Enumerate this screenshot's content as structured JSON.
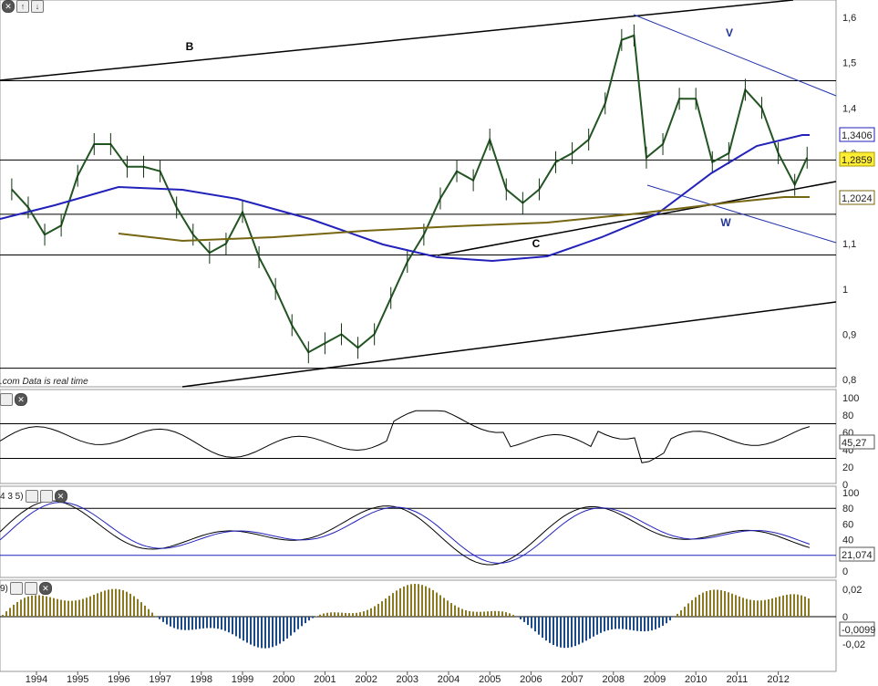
{
  "toolbar": {
    "close": "✕",
    "up": "↑",
    "down": "↓"
  },
  "source_note": ".com  Data is real time",
  "panels": {
    "stoch_title": "4 3 5)",
    "macd_title": "9)"
  },
  "chart_data": [
    {
      "type": "line",
      "name": "price",
      "title": "",
      "x_ticks": [
        "1994",
        "1995",
        "1996",
        "1997",
        "1998",
        "1999",
        "2000",
        "2001",
        "2002",
        "2003",
        "2004",
        "2005",
        "2006",
        "2007",
        "2008",
        "2009",
        "2010",
        "2011",
        "2012"
      ],
      "ylim": [
        0.8,
        1.62
      ],
      "y_ticks": [
        "1,6",
        "1,5",
        "1,4",
        "1,3",
        "1,2",
        "1,1",
        "1",
        "0,9",
        "0,8"
      ],
      "value_labels": {
        "ma_short": "1,3406",
        "last": "1,2859",
        "ma_long": "1,2024"
      },
      "annotations": [
        "B",
        "V",
        "W",
        "C"
      ],
      "x": [
        1993.4,
        1993.8,
        1994.2,
        1994.6,
        1995.0,
        1995.4,
        1995.8,
        1996.2,
        1996.6,
        1997.0,
        1997.4,
        1997.8,
        1998.2,
        1998.6,
        1999.0,
        1999.4,
        1999.8,
        2000.2,
        2000.6,
        2001.0,
        2001.4,
        2001.8,
        2002.2,
        2002.6,
        2003.0,
        2003.4,
        2003.8,
        2004.2,
        2004.6,
        2005.0,
        2005.4,
        2005.8,
        2006.2,
        2006.6,
        2007.0,
        2007.4,
        2007.8,
        2008.2,
        2008.5,
        2008.8,
        2009.2,
        2009.6,
        2010.0,
        2010.4,
        2010.8,
        2011.2,
        2011.6,
        2012.0,
        2012.4,
        2012.7
      ],
      "close": [
        1.22,
        1.18,
        1.12,
        1.14,
        1.25,
        1.32,
        1.32,
        1.27,
        1.27,
        1.26,
        1.18,
        1.12,
        1.08,
        1.1,
        1.17,
        1.07,
        1.0,
        0.92,
        0.86,
        0.88,
        0.9,
        0.87,
        0.9,
        0.98,
        1.06,
        1.12,
        1.2,
        1.26,
        1.24,
        1.33,
        1.22,
        1.19,
        1.22,
        1.28,
        1.3,
        1.33,
        1.41,
        1.55,
        1.56,
        1.29,
        1.32,
        1.42,
        1.42,
        1.28,
        1.3,
        1.44,
        1.4,
        1.3,
        1.23,
        1.29
      ]
    },
    {
      "type": "line",
      "name": "rsi",
      "ylim": [
        0,
        100
      ],
      "y_ticks": [
        "100",
        "80",
        "60",
        "40",
        "20",
        "0"
      ],
      "last_label": "45,27"
    },
    {
      "type": "line",
      "name": "stochastic",
      "ylim": [
        0,
        100
      ],
      "y_ticks": [
        "100",
        "80",
        "60",
        "40",
        "20",
        "0"
      ],
      "last_label": "21,074"
    },
    {
      "type": "bar",
      "name": "macd-histogram",
      "y_ticks": [
        "0,02",
        "0",
        "-0,02"
      ],
      "last_label": "-0,0099"
    }
  ]
}
